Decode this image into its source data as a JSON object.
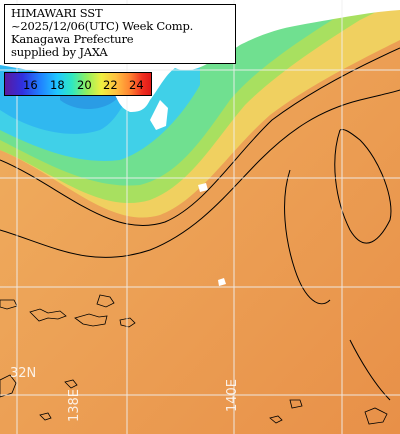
{
  "title": {
    "line1": "HIMAWARI SST",
    "line2": "~2025/12/06(UTC) Week Comp.",
    "line3": "Kanagawa Prefecture",
    "line4": "supplied by JAXA"
  },
  "colorbar": {
    "ticks": [
      "16",
      "18",
      "20",
      "22",
      "24"
    ]
  },
  "coordinates": {
    "lat_label": "32N",
    "lon_label_1": "138E",
    "lon_label_2": "140E"
  },
  "colors": {
    "warm_sea": "#e8a050",
    "coast_cyan": "#40c8e8",
    "land": "#ffffff",
    "grid": "#f0f0f0"
  }
}
